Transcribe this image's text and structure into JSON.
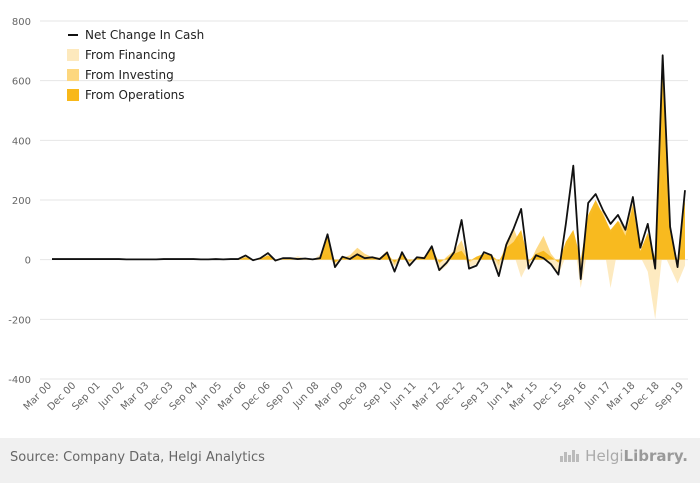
{
  "chart_data": {
    "type": "area",
    "title": "",
    "xlabel": "",
    "ylabel": "",
    "ylim": [
      -400,
      800
    ],
    "yticks": [
      -400,
      -200,
      0,
      200,
      400,
      600,
      800
    ],
    "xtick_labels": [
      "Mar 00",
      "Dec 00",
      "Sep 01",
      "Jun 02",
      "Mar 03",
      "Dec 03",
      "Sep 04",
      "Jun 05",
      "Mar 06",
      "Dec 06",
      "Sep 07",
      "Jun 08",
      "Mar 09",
      "Dec 09",
      "Sep 10",
      "Jun 11",
      "Mar 12",
      "Dec 12",
      "Sep 13",
      "Jun 14",
      "Mar 15",
      "Dec 15",
      "Sep 16",
      "Jun 17",
      "Mar 18",
      "Dec 18",
      "Sep 19"
    ],
    "grid": true,
    "legend_position": "top-left",
    "colors": {
      "net": "#111111",
      "financing": "#fde9bd",
      "investing": "#fdd77e",
      "operations": "#f8b819"
    },
    "series": [
      {
        "name": "Net Change In Cash",
        "kind": "line",
        "values": [
          2,
          2,
          2,
          2,
          2,
          2,
          2,
          2,
          2,
          2,
          1,
          1,
          1,
          1,
          1,
          2,
          2,
          2,
          2,
          2,
          1,
          1,
          2,
          1,
          2,
          2,
          14,
          -2,
          5,
          22,
          -3,
          5,
          5,
          2,
          4,
          1,
          5,
          85,
          -25,
          10,
          2,
          18,
          5,
          8,
          2,
          24,
          -40,
          25,
          -20,
          8,
          5,
          45,
          -35,
          -10,
          25,
          133,
          -30,
          -20,
          25,
          15,
          -55,
          50,
          105,
          170,
          -30,
          15,
          5,
          -15,
          -50,
          120,
          315,
          -65,
          190,
          220,
          165,
          120,
          150,
          100,
          210,
          40,
          120,
          -30,
          685,
          110,
          -25,
          233
        ]
      },
      {
        "name": "From Financing",
        "kind": "area",
        "values": [
          2,
          2,
          2,
          2,
          2,
          2,
          2,
          2,
          2,
          2,
          1,
          1,
          1,
          1,
          1,
          2,
          2,
          2,
          2,
          2,
          1,
          1,
          2,
          1,
          2,
          2,
          10,
          -3,
          3,
          10,
          -6,
          2,
          2,
          12,
          3,
          -2,
          18,
          15,
          -20,
          8,
          10,
          15,
          12,
          10,
          8,
          18,
          -25,
          20,
          -15,
          10,
          8,
          20,
          -40,
          -20,
          18,
          25,
          -25,
          -15,
          20,
          15,
          -40,
          45,
          20,
          -60,
          -10,
          10,
          15,
          -20,
          -50,
          10,
          80,
          -95,
          40,
          50,
          60,
          -95,
          40,
          80,
          110,
          10,
          -40,
          -200,
          30,
          -25,
          -80,
          -20
        ]
      },
      {
        "name": "From Investing",
        "kind": "area",
        "values": [
          1,
          1,
          1,
          1,
          1,
          1,
          1,
          1,
          1,
          1,
          1,
          1,
          1,
          1,
          1,
          1,
          1,
          1,
          1,
          1,
          1,
          1,
          1,
          1,
          1,
          1,
          3,
          1,
          3,
          12,
          0,
          2,
          3,
          6,
          3,
          1,
          8,
          22,
          -10,
          6,
          15,
          40,
          20,
          8,
          6,
          30,
          -20,
          18,
          -10,
          8,
          10,
          45,
          -15,
          10,
          30,
          65,
          -10,
          5,
          15,
          20,
          -20,
          60,
          105,
          40,
          -20,
          35,
          80,
          20,
          -10,
          30,
          80,
          -40,
          130,
          180,
          160,
          90,
          130,
          110,
          190,
          25,
          80,
          -10,
          300,
          90,
          -10,
          40
        ]
      },
      {
        "name": "From Operations",
        "kind": "area",
        "values": [
          0,
          0,
          0,
          0,
          0,
          0,
          0,
          0,
          0,
          0,
          0,
          0,
          0,
          0,
          0,
          0,
          0,
          0,
          0,
          0,
          0,
          0,
          0,
          0,
          0,
          0,
          8,
          0,
          3,
          15,
          0,
          3,
          4,
          3,
          3,
          2,
          4,
          80,
          -10,
          8,
          5,
          20,
          8,
          6,
          4,
          22,
          -10,
          20,
          -5,
          6,
          5,
          40,
          -10,
          5,
          20,
          30,
          -5,
          10,
          20,
          15,
          -5,
          40,
          60,
          100,
          -5,
          20,
          30,
          10,
          -10,
          60,
          100,
          0,
          150,
          200,
          150,
          100,
          130,
          80,
          180,
          30,
          90,
          5,
          690,
          100,
          -5,
          200
        ]
      }
    ]
  },
  "footer": {
    "source": "Source: Company Data, Helgi Analytics",
    "logo_light": "Helgi",
    "logo_bold": "Library."
  }
}
